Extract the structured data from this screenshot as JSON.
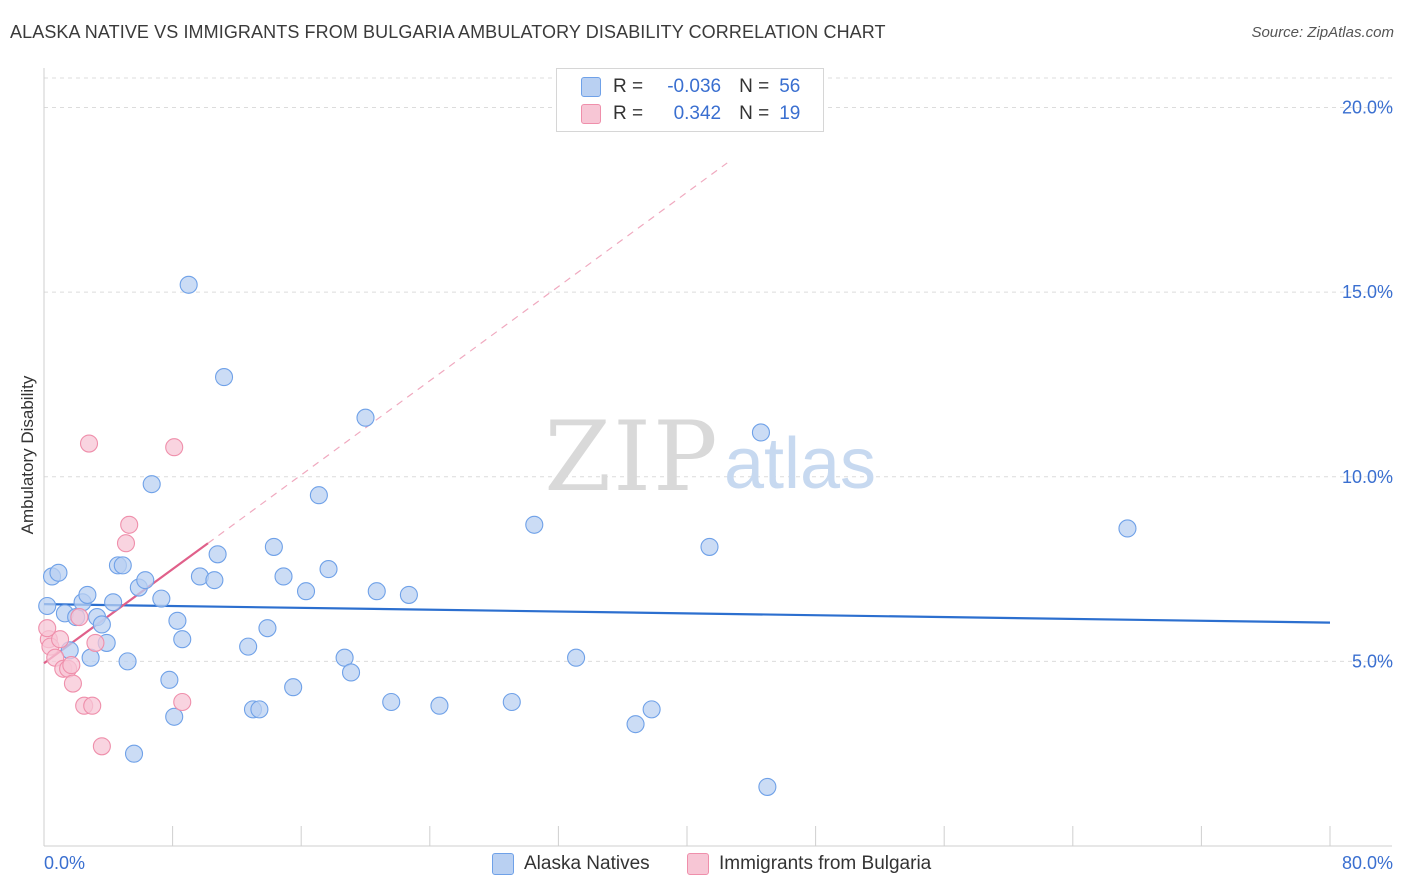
{
  "chart_data": {
    "type": "scatter",
    "title": "ALASKA NATIVE VS IMMIGRANTS FROM BULGARIA AMBULATORY DISABILITY CORRELATION CHART",
    "source": "Source: ZipAtlas.com",
    "xlabel": "",
    "ylabel": "Ambulatory Disability",
    "xlim": [
      0,
      80
    ],
    "ylim": [
      0,
      20.8
    ],
    "x_tick_labels": [
      "0.0%",
      "80.0%"
    ],
    "y_ticks": [
      5,
      10,
      15,
      20
    ],
    "y_tick_labels": [
      "5.0%",
      "10.0%",
      "15.0%",
      "20.0%"
    ],
    "watermark": {
      "zip": "ZIP",
      "atlas": "atlas"
    },
    "legend": {
      "rows": [
        {
          "r_label": "R =",
          "r_value": "-0.036",
          "n_label": "N =",
          "n_value": "56"
        },
        {
          "r_label": "R =",
          "r_value": "0.342",
          "n_label": "N =",
          "n_value": "19"
        }
      ]
    },
    "series": [
      {
        "name": "Alaska Natives",
        "color": "#6fa1e8",
        "fill": "#b9d0f2",
        "trend": {
          "x": [
            0,
            80
          ],
          "y": [
            6.55,
            6.05
          ],
          "style": "solid",
          "color": "#2c6fcf"
        },
        "points": [
          [
            0.2,
            6.5
          ],
          [
            0.5,
            7.3
          ],
          [
            0.9,
            7.4
          ],
          [
            1.3,
            6.3
          ],
          [
            1.6,
            5.3
          ],
          [
            2.0,
            6.2
          ],
          [
            2.4,
            6.6
          ],
          [
            2.7,
            6.8
          ],
          [
            2.9,
            5.1
          ],
          [
            3.3,
            6.2
          ],
          [
            3.6,
            6.0
          ],
          [
            3.9,
            5.5
          ],
          [
            4.3,
            6.6
          ],
          [
            4.6,
            7.6
          ],
          [
            4.9,
            7.6
          ],
          [
            5.2,
            5.0
          ],
          [
            5.6,
            2.5
          ],
          [
            5.9,
            7.0
          ],
          [
            6.3,
            7.2
          ],
          [
            6.7,
            9.8
          ],
          [
            7.3,
            6.7
          ],
          [
            7.8,
            4.5
          ],
          [
            8.1,
            3.5
          ],
          [
            8.3,
            6.1
          ],
          [
            8.6,
            5.6
          ],
          [
            9.0,
            15.2
          ],
          [
            9.7,
            7.3
          ],
          [
            10.6,
            7.2
          ],
          [
            10.8,
            7.9
          ],
          [
            11.2,
            12.7
          ],
          [
            12.7,
            5.4
          ],
          [
            13.0,
            3.7
          ],
          [
            13.4,
            3.7
          ],
          [
            13.9,
            5.9
          ],
          [
            14.3,
            8.1
          ],
          [
            14.9,
            7.3
          ],
          [
            15.5,
            4.3
          ],
          [
            16.3,
            6.9
          ],
          [
            17.1,
            9.5
          ],
          [
            17.7,
            7.5
          ],
          [
            18.7,
            5.1
          ],
          [
            19.1,
            4.7
          ],
          [
            20.0,
            11.6
          ],
          [
            20.7,
            6.9
          ],
          [
            21.6,
            3.9
          ],
          [
            22.7,
            6.8
          ],
          [
            24.6,
            3.8
          ],
          [
            29.1,
            3.9
          ],
          [
            30.5,
            8.7
          ],
          [
            33.1,
            5.1
          ],
          [
            36.8,
            3.3
          ],
          [
            37.8,
            3.7
          ],
          [
            41.4,
            8.1
          ],
          [
            44.6,
            11.2
          ],
          [
            45.0,
            1.6
          ],
          [
            67.4,
            8.6
          ]
        ]
      },
      {
        "name": "Immigrants from Bulgaria",
        "color": "#ef8fab",
        "fill": "#f7c6d5",
        "trend": {
          "x": [
            0,
            10.2
          ],
          "y": [
            4.95,
            8.2
          ],
          "dash_to": [
            42.5,
            18.5
          ],
          "style": "solid+dashed",
          "color": "#e0608a"
        },
        "points": [
          [
            0.3,
            5.6
          ],
          [
            0.4,
            5.4
          ],
          [
            0.7,
            5.1
          ],
          [
            1.0,
            5.6
          ],
          [
            1.2,
            4.8
          ],
          [
            1.5,
            4.8
          ],
          [
            1.7,
            4.9
          ],
          [
            1.8,
            4.4
          ],
          [
            2.2,
            6.2
          ],
          [
            2.5,
            3.8
          ],
          [
            2.8,
            10.9
          ],
          [
            3.0,
            3.8
          ],
          [
            3.2,
            5.5
          ],
          [
            3.6,
            2.7
          ],
          [
            5.1,
            8.2
          ],
          [
            5.3,
            8.7
          ],
          [
            8.1,
            10.8
          ],
          [
            8.6,
            3.9
          ],
          [
            0.2,
            5.9
          ]
        ]
      }
    ]
  }
}
